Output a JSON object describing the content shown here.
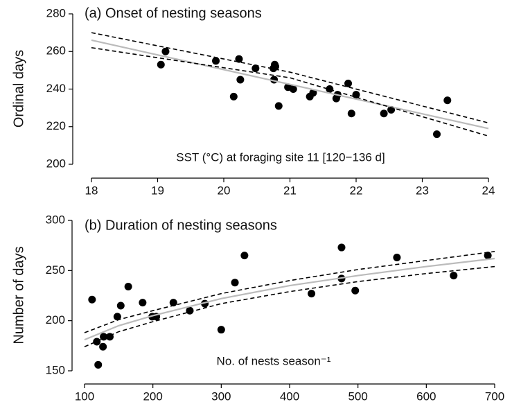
{
  "chart_data": [
    {
      "type": "scatter",
      "title": "(a) Onset of nesting seasons",
      "x_label": "SST (°C) at foraging site 11 [120−136 d]",
      "y_label": "Ordinal days",
      "xlim": [
        18,
        24
      ],
      "ylim": [
        200,
        280
      ],
      "xticks": [
        18,
        19,
        20,
        21,
        22,
        23,
        24
      ],
      "yticks": [
        200,
        220,
        240,
        260,
        280
      ],
      "series": [
        {
          "mark": "points",
          "color": "#000000",
          "x": [
            19.05,
            19.12,
            19.88,
            20.15,
            20.23,
            20.25,
            20.48,
            20.75,
            20.77,
            20.76,
            20.78,
            20.83,
            20.97,
            21.05,
            21.3,
            21.35,
            21.6,
            21.7,
            21.72,
            21.88,
            21.93,
            22.0,
            22.42,
            22.53,
            23.22,
            23.38
          ],
          "values": [
            253,
            260,
            255,
            236,
            256,
            245,
            251,
            251,
            253,
            245,
            252,
            231,
            241,
            240,
            236,
            238,
            240,
            235,
            237,
            243,
            227,
            237,
            227,
            229,
            216,
            234
          ]
        },
        {
          "mark": "line",
          "color": "#bbbbbb",
          "x": [
            18,
            24
          ],
          "values": [
            266,
            219
          ]
        },
        {
          "mark": "dashed",
          "color": "#000000",
          "x": [
            18,
            21,
            24
          ],
          "values": [
            270,
            249,
            222
          ]
        },
        {
          "mark": "dashed",
          "color": "#000000",
          "x": [
            18,
            21,
            24
          ],
          "values": [
            262,
            246,
            215
          ]
        }
      ]
    },
    {
      "type": "scatter",
      "title": "(b) Duration of nesting seasons",
      "x_label": "No. of nests season⁻¹",
      "y_label": "Number of days",
      "xlim": [
        100,
        700
      ],
      "ylim": [
        150,
        300
      ],
      "xticks": [
        100,
        200,
        300,
        400,
        500,
        600,
        700
      ],
      "yticks": [
        150,
        200,
        250,
        300
      ],
      "series": [
        {
          "mark": "points",
          "color": "#000000",
          "x": [
            111,
            118,
            120,
            127,
            128,
            137,
            148,
            153,
            164,
            185,
            199,
            205,
            230,
            254,
            276,
            300,
            320,
            334,
            432,
            476,
            476,
            496,
            557,
            640,
            690
          ],
          "values": [
            221,
            179,
            156,
            174,
            184,
            184,
            204,
            215,
            234,
            218,
            204,
            204,
            218,
            210,
            217,
            191,
            238,
            265,
            227,
            273,
            242,
            230,
            263,
            245,
            265
          ]
        },
        {
          "mark": "line",
          "color": "#bbbbbb",
          "x": [
            100,
            150,
            200,
            300,
            400,
            500,
            600,
            700
          ],
          "values": [
            181,
            195,
            205,
            222,
            235,
            245,
            254,
            262
          ]
        },
        {
          "mark": "dashed",
          "color": "#000000",
          "x": [
            100,
            150,
            200,
            300,
            400,
            500,
            600,
            700
          ],
          "values": [
            188,
            201,
            210,
            227,
            240,
            251,
            260,
            269
          ]
        },
        {
          "mark": "dashed",
          "color": "#000000",
          "x": [
            100,
            150,
            200,
            300,
            400,
            500,
            600,
            700
          ],
          "values": [
            174,
            189,
            199,
            217,
            229,
            239,
            247,
            254
          ]
        }
      ]
    }
  ]
}
